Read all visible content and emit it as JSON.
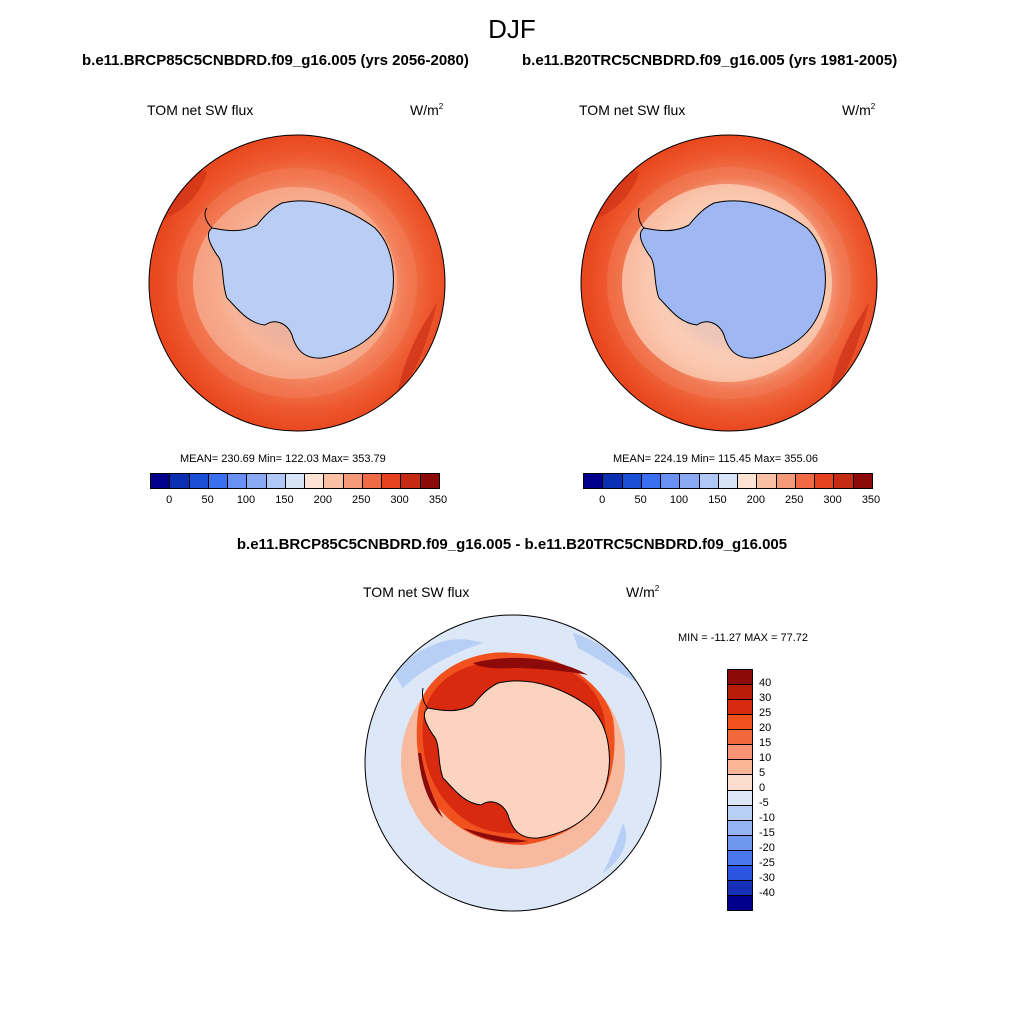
{
  "title": "DJF",
  "panels": {
    "left": {
      "case": "b.e11.BRCP85C5CNBDRD.f09_g16.005 (yrs 2056-2080)",
      "variable": "TOM net SW flux",
      "units": "W/m",
      "units_exp": "2",
      "stats": "MEAN= 230.69  Min= 122.03  Max= 353.79"
    },
    "right": {
      "case": "b.e11.B20TRC5CNBDRD.f09_g16.005 (yrs 1981-2005)",
      "variable": "TOM net SW flux",
      "units": "W/m",
      "units_exp": "2",
      "stats": "MEAN= 224.19  Min= 115.45  Max= 355.06"
    },
    "diff": {
      "case": "b.e11.BRCP85C5CNBDRD.f09_g16.005 - b.e11.B20TRC5CNBDRD.f09_g16.005",
      "variable": "TOM net SW flux",
      "units": "W/m",
      "units_exp": "2",
      "stats": "MIN = -11.27 MAX =  77.72"
    }
  },
  "colorbar_abs": {
    "colors": [
      "#00008c",
      "#0a2fb0",
      "#1c4fd6",
      "#3a6ff0",
      "#6890f5",
      "#8aa9f5",
      "#b0c8f5",
      "#d7e4f7",
      "#fde3d3",
      "#f9c0a4",
      "#f59a76",
      "#f06a45",
      "#e5431f",
      "#c52a12",
      "#8c0a0a"
    ],
    "ticks": [
      "0",
      "50",
      "100",
      "150",
      "200",
      "250",
      "300",
      "350"
    ]
  },
  "colorbar_diff": {
    "colors": [
      "#8c0a0a",
      "#b81d0c",
      "#d92a10",
      "#f1501f",
      "#f2683a",
      "#f79472",
      "#f9b595",
      "#fcdccc",
      "#dce8f7",
      "#b8cff5",
      "#94b4f3",
      "#6f97f0",
      "#4a78ec",
      "#2b55e0",
      "#1530b6",
      "#00008c"
    ],
    "ticks": [
      "40",
      "30",
      "25",
      "20",
      "15",
      "10",
      "5",
      "0",
      "-5",
      "-10",
      "-15",
      "-20",
      "-25",
      "-30",
      "-40"
    ]
  },
  "chart_data": [
    {
      "type": "heatmap",
      "projection": "south polar stereographic",
      "title": "TOM net SW flux",
      "units": "W/m2",
      "period": "DJF, yrs 2056-2080",
      "mean": 230.69,
      "min": 122.03,
      "max": 353.79,
      "colorbar_levels": [
        0,
        25,
        50,
        75,
        100,
        125,
        150,
        175,
        200,
        225,
        250,
        275,
        300,
        325,
        350
      ],
      "regions": {
        "antarctic_interior": 150,
        "sea_ice_margin": 190,
        "mid_ocean": 285,
        "outer_ocean": 320
      }
    },
    {
      "type": "heatmap",
      "projection": "south polar stereographic",
      "title": "TOM net SW flux",
      "units": "W/m2",
      "period": "DJF, yrs 1981-2005",
      "mean": 224.19,
      "min": 115.45,
      "max": 355.06,
      "colorbar_levels": [
        0,
        25,
        50,
        75,
        100,
        125,
        150,
        175,
        200,
        225,
        250,
        275,
        300,
        325,
        350
      ],
      "regions": {
        "antarctic_interior": 130,
        "sea_ice_margin": 175,
        "mid_ocean": 280,
        "outer_ocean": 320
      }
    },
    {
      "type": "heatmap",
      "projection": "south polar stereographic",
      "title": "TOM net SW flux difference",
      "units": "W/m2",
      "min": -11.27,
      "max": 77.72,
      "colorbar_levels": [
        -40,
        -30,
        -25,
        -20,
        -15,
        -10,
        -5,
        0,
        5,
        10,
        15,
        20,
        25,
        30,
        40
      ],
      "regions": {
        "antarctic_interior": 8,
        "coastal_ring": 35,
        "southern_ocean": -3,
        "outer_ocean": -6
      }
    }
  ]
}
